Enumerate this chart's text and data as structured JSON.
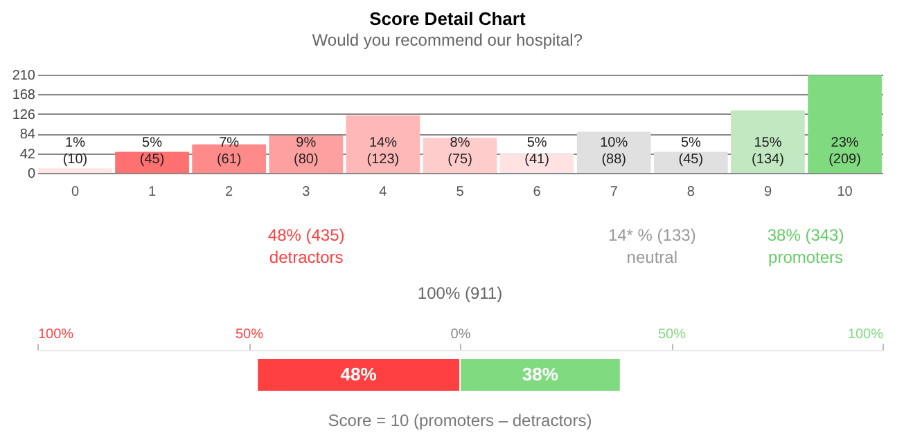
{
  "chart_data": [
    {
      "type": "bar",
      "title": "Score Detail Chart",
      "subtitle": "Would you recommend our hospital?",
      "categories": [
        "0",
        "1",
        "2",
        "3",
        "4",
        "5",
        "6",
        "7",
        "8",
        "9",
        "10"
      ],
      "values": [
        10,
        45,
        61,
        80,
        123,
        75,
        41,
        88,
        45,
        134,
        209
      ],
      "colors": [
        "#ffe6e6",
        "#ff7070",
        "#ff8a8a",
        "#ffa0a0",
        "#ffb8b8",
        "#ffcccc",
        "#ffe3e3",
        "#e0e0e0",
        "#e0e0e0",
        "#c2e8c2",
        "#80da80"
      ],
      "value_labels": [
        "1%\n(10)",
        "5%\n(45)",
        "7%\n(61)",
        "9%\n(80)",
        "14%\n(123)",
        "8%\n(75)",
        "5%\n(41)",
        "10%\n(88)",
        "5%\n(45)",
        "15%\n(134)",
        "23%\n(209)"
      ],
      "ylim": [
        0,
        210
      ],
      "yticks": [
        0,
        42,
        84,
        126,
        168,
        210
      ],
      "grid": "y",
      "annotations": [
        "48% (435)\ndetractors",
        "14* % (133)\nneutral",
        "38% (343)\npromoters",
        "100% (911)"
      ]
    },
    {
      "type": "bar",
      "orientation": "horizontal",
      "categories": [
        null
      ],
      "series": [
        {
          "color": "#ff4040",
          "base": [
            -48
          ],
          "values": [
            48
          ],
          "value_labels": [
            "48%"
          ]
        },
        {
          "color": "#80da80",
          "base": [
            0
          ],
          "values": [
            38
          ],
          "value_labels": [
            "38%"
          ]
        }
      ],
      "xlim": [
        -100,
        100
      ],
      "xticks": [
        {
          "value": -100,
          "label": "100%"
        },
        {
          "value": -50,
          "label": "50%"
        },
        {
          "value": 0,
          "label": "0%"
        },
        {
          "value": 50,
          "label": "50%"
        },
        {
          "value": 100,
          "label": "100%"
        }
      ],
      "annotations": [
        "Score = 10 (promoters – detractors)"
      ]
    }
  ]
}
